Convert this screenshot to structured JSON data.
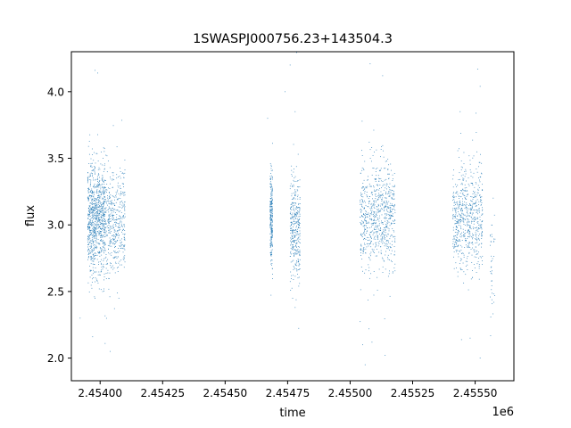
{
  "chart_data": {
    "type": "scatter",
    "title": "1SWASPJ000756.23+143504.3",
    "xlabel": "time",
    "ylabel": "flux",
    "x_offset_label": "1e6",
    "x_ticks": [
      2.454,
      2.45425,
      2.4545,
      2.45475,
      2.455,
      2.45525,
      2.4555
    ],
    "x_tick_labels": [
      "2.45400",
      "2.45425",
      "2.45450",
      "2.45475",
      "2.45500",
      "2.45525",
      "2.45550"
    ],
    "y_ticks": [
      2.0,
      2.5,
      3.0,
      3.5,
      4.0
    ],
    "y_tick_labels": [
      "2.0",
      "2.5",
      "3.0",
      "3.5",
      "4.0"
    ],
    "xlim": [
      2.453885,
      2.455655
    ],
    "ylim": [
      1.83,
      4.3
    ],
    "grid": false,
    "point_color": "#1f77b4",
    "series": [
      {
        "clusters": [
          {
            "x_range": [
              2.45395,
              2.45402
            ],
            "center": 3.05,
            "spread": 0.2,
            "count": 900
          },
          {
            "x_range": [
              2.45402,
              2.4541
            ],
            "center": 3.02,
            "spread": 0.2,
            "count": 450
          },
          {
            "x_range": [
              2.45468,
              2.45469
            ],
            "center": 3.05,
            "spread": 0.17,
            "count": 250
          },
          {
            "x_range": [
              2.45476,
              2.4548
            ],
            "center": 3.0,
            "spread": 0.19,
            "count": 350
          },
          {
            "x_range": [
              2.45504,
              2.45518
            ],
            "center": 3.05,
            "spread": 0.19,
            "count": 750
          },
          {
            "x_range": [
              2.45541,
              2.45553
            ],
            "center": 3.05,
            "spread": 0.19,
            "count": 650
          },
          {
            "x_range": [
              2.45556,
              2.45558
            ],
            "center": 2.7,
            "spread": 0.2,
            "count": 40
          }
        ],
        "outliers": [
          [
            2.45398,
            4.16
          ],
          [
            2.45399,
            4.14
          ],
          [
            2.45397,
            2.16
          ],
          [
            2.45392,
            2.3
          ],
          [
            2.45404,
            2.05
          ],
          [
            2.45402,
            2.11
          ],
          [
            2.45476,
            4.2
          ],
          [
            2.45474,
            4.0
          ],
          [
            2.45478,
            3.85
          ],
          [
            2.45467,
            3.8
          ],
          [
            2.45513,
            4.12
          ],
          [
            2.45508,
            4.21
          ],
          [
            2.45505,
            2.1
          ],
          [
            2.45506,
            1.95
          ],
          [
            2.45514,
            2.02
          ],
          [
            2.45551,
            4.17
          ],
          [
            2.45552,
            4.04
          ],
          [
            2.45544,
            3.85
          ],
          [
            2.45552,
            2.0
          ],
          [
            2.45548,
            2.15
          ],
          [
            2.45477,
            2.45
          ],
          [
            2.45478,
            2.38
          ],
          [
            2.45469,
            2.63
          ]
        ]
      }
    ]
  }
}
